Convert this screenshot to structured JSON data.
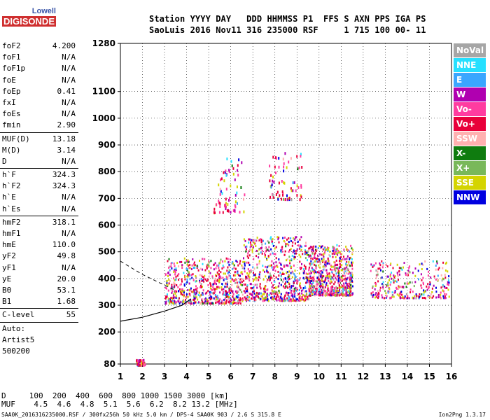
{
  "logo": {
    "line1": "Lowell",
    "line2": "DIGISONDE"
  },
  "header": {
    "line1": "Station YYYY DAY   DDD HHMMSS P1  FFS S AXN PPS IGA PS",
    "line2": "SaoLuis 2016 Nov11 316 235000 RSF     1 715 100 00- 11"
  },
  "params_group1": [
    {
      "name": "foF2",
      "value": "4.200"
    },
    {
      "name": "foF1",
      "value": "N/A"
    },
    {
      "name": "foF1p",
      "value": "N/A"
    },
    {
      "name": "foE",
      "value": "N/A"
    },
    {
      "name": "foEp",
      "value": "0.41"
    },
    {
      "name": "fxI",
      "value": "N/A"
    },
    {
      "name": "foEs",
      "value": "N/A"
    },
    {
      "name": "fmin",
      "value": "2.90"
    }
  ],
  "params_group2": [
    {
      "name": "MUF(D)",
      "value": "13.18"
    },
    {
      "name": "M(D)",
      "value": "3.14"
    },
    {
      "name": "D",
      "value": "N/A"
    }
  ],
  "params_group3": [
    {
      "name": "h`F",
      "value": "324.3"
    },
    {
      "name": "h`F2",
      "value": "324.3"
    },
    {
      "name": "h`E",
      "value": "N/A"
    },
    {
      "name": "h`Es",
      "value": "N/A"
    }
  ],
  "params_group4": [
    {
      "name": "hmF2",
      "value": "318.1"
    },
    {
      "name": "hmF1",
      "value": "N/A"
    },
    {
      "name": "hmE",
      "value": "110.0"
    },
    {
      "name": "yF2",
      "value": "49.8"
    },
    {
      "name": "yF1",
      "value": "N/A"
    },
    {
      "name": "yE",
      "value": "20.0"
    },
    {
      "name": "B0",
      "value": "53.1"
    },
    {
      "name": "B1",
      "value": "1.68"
    }
  ],
  "params_group5": [
    {
      "name": "C-level",
      "value": "55"
    }
  ],
  "auto_info": {
    "line1": "Auto:",
    "line2": "Artist5",
    "line3": "500200"
  },
  "legend": [
    {
      "label": "NoVal",
      "color": "#a6a6a6"
    },
    {
      "label": "NNE",
      "color": "#26e0ff"
    },
    {
      "label": "E",
      "color": "#3aa6ff"
    },
    {
      "label": "W",
      "color": "#b000b0"
    },
    {
      "label": "Vo-",
      "color": "#ff3ca0"
    },
    {
      "label": "Vo+",
      "color": "#e8003a"
    },
    {
      "label": "SSW",
      "color": "#ffb0b0"
    },
    {
      "label": "X-",
      "color": "#0f7c0f"
    },
    {
      "label": "X+",
      "color": "#79b85a"
    },
    {
      "label": "SSE",
      "color": "#d4d400"
    },
    {
      "label": "NNW",
      "color": "#0000e0"
    }
  ],
  "bottom": {
    "d_line": "D     100  200  400  600  800 1000 1500 3000 [km]",
    "muf_line": "MUF    4.5  4.6  4.8  5.1  5.6  6.2  8.2 13.2 [MHz]"
  },
  "footer": {
    "left": "SAA0K_2016316235000.RSF / 300fx256h 50 kHz 5.0 km / DPS-4 SAA0K 903 / 2.6 S 315.8 E",
    "right": "Ion2Png 1.3.17"
  },
  "chart_data": {
    "type": "scatter",
    "title": "",
    "xlabel": "",
    "ylabel": "",
    "xlim": [
      1,
      16
    ],
    "ylim": [
      80,
      1280
    ],
    "x_ticks": [
      1,
      2,
      3,
      4,
      5,
      6,
      7,
      8,
      9,
      10,
      11,
      12,
      13,
      14,
      15,
      16
    ],
    "y_ticks": [
      80,
      200,
      300,
      400,
      500,
      600,
      700,
      800,
      900,
      1000,
      1100,
      1280
    ],
    "grid": true,
    "legend_position": "right",
    "echo_clusters": [
      {
        "x_range": [
          3.0,
          6.5
        ],
        "y_range": [
          310,
          480
        ],
        "density": "dense"
      },
      {
        "x_range": [
          6.5,
          9.5
        ],
        "y_range": [
          320,
          560
        ],
        "density": "dense"
      },
      {
        "x_range": [
          9.5,
          11.5
        ],
        "y_range": [
          340,
          530
        ],
        "density": "dense"
      },
      {
        "x_range": [
          12.3,
          15.9
        ],
        "y_range": [
          330,
          470
        ],
        "density": "medium"
      },
      {
        "x_range": [
          5.2,
          6.6
        ],
        "y_range": [
          650,
          860
        ],
        "density": "sparse"
      },
      {
        "x_range": [
          7.7,
          9.2
        ],
        "y_range": [
          700,
          880
        ],
        "density": "sparse"
      },
      {
        "x_range": [
          1.7,
          2.1
        ],
        "y_range": [
          80,
          100
        ],
        "density": "sparse"
      }
    ],
    "profile_curve": {
      "solid": [
        [
          1.0,
          240
        ],
        [
          2.0,
          255
        ],
        [
          3.0,
          278
        ],
        [
          3.8,
          300
        ],
        [
          4.2,
          324
        ]
      ],
      "dashed": [
        [
          1.0,
          465
        ],
        [
          2.0,
          415
        ],
        [
          3.0,
          375
        ],
        [
          3.5,
          355
        ]
      ]
    }
  }
}
